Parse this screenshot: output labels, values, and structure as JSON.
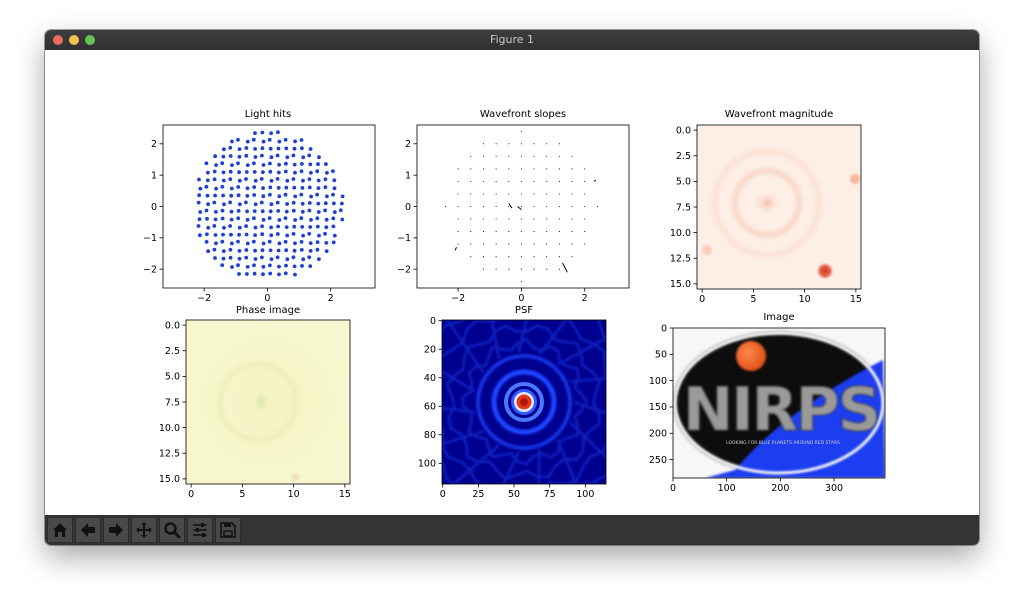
{
  "window": {
    "title": "Figure 1"
  },
  "toolbar": {
    "buttons": [
      {
        "name": "home-button",
        "icon": "home-icon"
      },
      {
        "name": "back-button",
        "icon": "arrow-left-icon"
      },
      {
        "name": "forward-button",
        "icon": "arrow-right-icon"
      },
      {
        "name": "pan-button",
        "icon": "move-icon"
      },
      {
        "name": "zoom-button",
        "icon": "magnifier-icon"
      },
      {
        "name": "configure-subplots-button",
        "icon": "sliders-icon"
      },
      {
        "name": "save-button",
        "icon": "floppy-disk-icon"
      }
    ]
  },
  "chart_data": [
    {
      "type": "scatter",
      "title": "Light hits",
      "xlim": [
        -3.3,
        3.4
      ],
      "ylim": [
        -2.6,
        2.6
      ],
      "xticks": [
        "−2",
        "0",
        "2"
      ],
      "yticks": [
        "2",
        "1",
        "0",
        "−1",
        "−2"
      ],
      "marker_color": "#1f3fd6",
      "grid_spacing": 0.25,
      "aperture_radius": 2.4
    },
    {
      "type": "scatter",
      "title": "Wavefront slopes",
      "xlim": [
        -3.3,
        3.4
      ],
      "ylim": [
        -2.6,
        2.6
      ],
      "xticks": [
        "−2",
        "0",
        "2"
      ],
      "yticks": [
        "2",
        "1",
        "0",
        "−1",
        "−2"
      ],
      "marker_color": "#000000",
      "grid_spacing": 0.4,
      "aperture_radius": 2.4
    },
    {
      "type": "heatmap",
      "title": "Wavefront magnitude",
      "xticks": [
        "0",
        "5",
        "10",
        "15"
      ],
      "yticks": [
        "0.0",
        "2.5",
        "5.0",
        "7.5",
        "10.0",
        "12.5",
        "15.0"
      ],
      "colormap": "Reds"
    },
    {
      "type": "heatmap",
      "title": "Phase image",
      "xticks": [
        "0",
        "5",
        "10",
        "15"
      ],
      "yticks": [
        "0.0",
        "2.5",
        "5.0",
        "7.5",
        "10.0",
        "12.5",
        "15.0"
      ],
      "colormap": "yellow-green"
    },
    {
      "type": "heatmap",
      "title": "PSF",
      "xticks": [
        "0",
        "25",
        "50",
        "75",
        "100"
      ],
      "yticks": [
        "0",
        "20",
        "40",
        "60",
        "80",
        "100"
      ],
      "colormap": "jet"
    },
    {
      "type": "heatmap",
      "title": "Image",
      "xticks": [
        "0",
        "100",
        "200",
        "300"
      ],
      "yticks": [
        "0",
        "50",
        "100",
        "150",
        "200",
        "250"
      ],
      "logo_text": "NIRPS",
      "logo_tagline": "LOOKING FOR BLUE PLANETS AROUND RED STARS"
    }
  ]
}
